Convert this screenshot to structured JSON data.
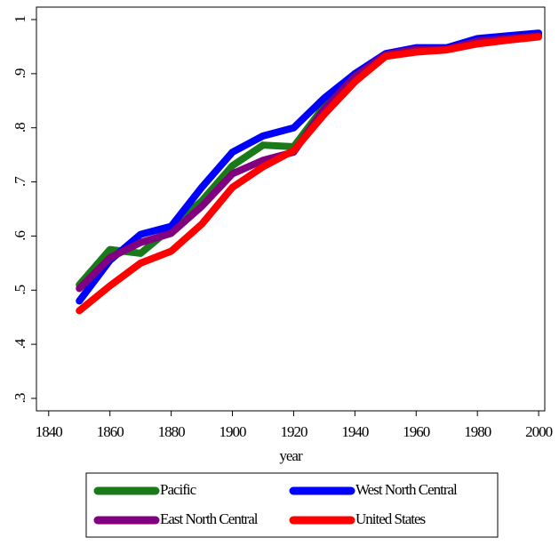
{
  "chart_data": {
    "type": "line",
    "x_label": "year",
    "x": [
      1850,
      1860,
      1870,
      1880,
      1890,
      1900,
      1910,
      1920,
      1930,
      1940,
      1950,
      1960,
      1970,
      1980,
      1990,
      2000
    ],
    "series": [
      {
        "name": "Pacific",
        "color": "#1a7a1a",
        "values": [
          0.51,
          0.575,
          0.568,
          0.615,
          0.665,
          0.73,
          0.768,
          0.765,
          0.84,
          0.9,
          0.935,
          0.945,
          0.945,
          0.96,
          0.965,
          0.972
        ]
      },
      {
        "name": "West North Central",
        "color": "#0000ff",
        "values": [
          0.48,
          0.555,
          0.603,
          0.618,
          0.69,
          0.755,
          0.785,
          0.8,
          0.855,
          0.9,
          0.937,
          0.948,
          0.948,
          0.965,
          0.97,
          0.975
        ]
      },
      {
        "name": "East North Central",
        "color": "#800080",
        "values": [
          0.503,
          0.56,
          0.588,
          0.605,
          0.655,
          0.715,
          0.74,
          0.755,
          0.835,
          0.895,
          0.935,
          0.945,
          0.945,
          0.96,
          0.965,
          0.97
        ]
      },
      {
        "name": "United States",
        "color": "#ff0000",
        "values": [
          0.462,
          0.508,
          0.55,
          0.572,
          0.622,
          0.69,
          0.728,
          0.758,
          0.825,
          0.885,
          0.932,
          0.94,
          0.944,
          0.955,
          0.962,
          0.968
        ]
      }
    ],
    "xlim": [
      1836,
      2002
    ],
    "xticks": [
      1840,
      1860,
      1880,
      1900,
      1920,
      1940,
      1960,
      1980,
      2000
    ],
    "ylim": [
      0.277,
      1.023
    ],
    "yticks": [
      {
        "value": 0.3,
        "label": ".3"
      },
      {
        "value": 0.4,
        "label": ".4"
      },
      {
        "value": 0.5,
        "label": ".5"
      },
      {
        "value": 0.6,
        "label": ".6"
      },
      {
        "value": 0.7,
        "label": ".7"
      },
      {
        "value": 0.8,
        "label": ".8"
      },
      {
        "value": 0.9,
        "label": ".9"
      },
      {
        "value": 1,
        "label": "1"
      }
    ],
    "legend": "bottom"
  }
}
